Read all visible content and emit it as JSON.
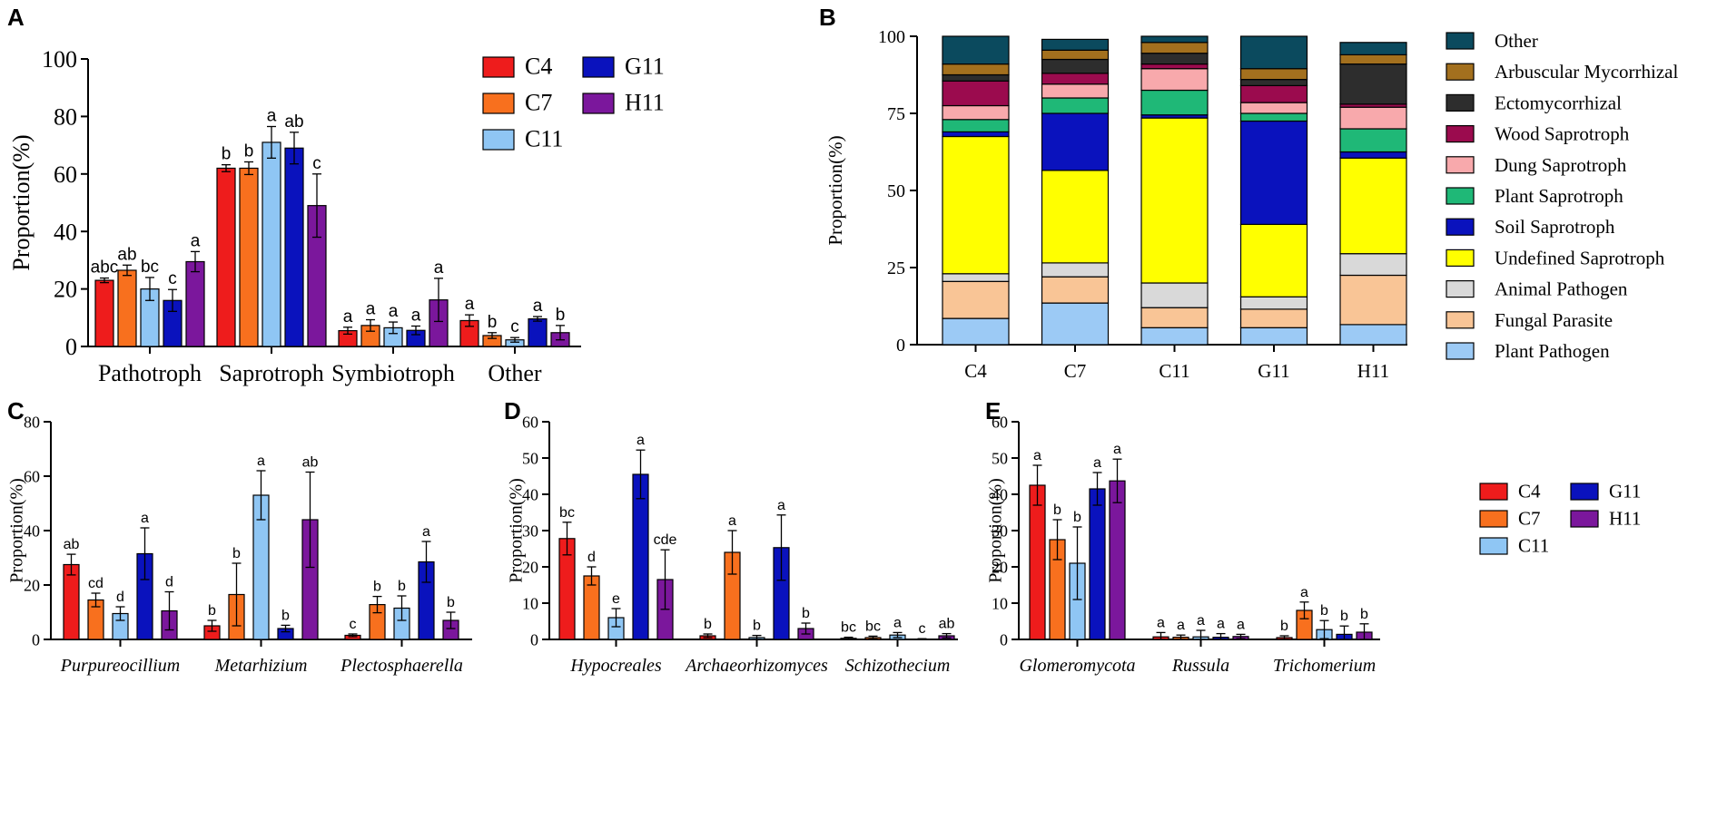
{
  "colors": {
    "C4": "#ee1c1c",
    "C7": "#f8701e",
    "C11": "#8fc6f4",
    "G11": "#0a12bd",
    "H11": "#7b179c",
    "axis": "#000000"
  },
  "chart_data": [
    {
      "id": "A",
      "panel_label": "A",
      "type": "bar",
      "ylabel": "Proportion(%)",
      "ylim": [
        0,
        100
      ],
      "yticks": [
        "0",
        "20",
        "40",
        "60",
        "80",
        "100"
      ],
      "categories": [
        "Pathotroph",
        "Saprotroph",
        "Symbiotroph",
        "Other"
      ],
      "italic_categories": false,
      "legend_title_order": [
        "C4",
        "C7",
        "C11",
        "G11",
        "H11"
      ],
      "series": [
        {
          "name": "C4",
          "values": [
            23,
            62,
            5.5,
            9
          ],
          "errors": [
            0.8,
            1.2,
            1.2,
            2
          ],
          "letters": [
            "abc",
            "b",
            "a",
            "a"
          ]
        },
        {
          "name": "C7",
          "values": [
            26.5,
            62,
            7.3,
            3.8
          ],
          "errors": [
            1.8,
            2.2,
            2,
            1
          ],
          "letters": [
            "ab",
            "b",
            "a",
            "b"
          ]
        },
        {
          "name": "C11",
          "values": [
            20,
            71,
            6.5,
            2.3
          ],
          "errors": [
            4,
            5.5,
            2,
            0.8
          ],
          "letters": [
            "bc",
            "a",
            "a",
            "c"
          ]
        },
        {
          "name": "G11",
          "values": [
            16,
            69,
            5.6,
            9.6
          ],
          "errors": [
            3.8,
            5.5,
            1.5,
            0.8
          ],
          "letters": [
            "c",
            "ab",
            "a",
            "a"
          ]
        },
        {
          "name": "H11",
          "values": [
            29.5,
            49,
            16.2,
            4.8
          ],
          "errors": [
            3.5,
            11,
            7.5,
            2.5
          ],
          "letters": [
            "a",
            "c",
            "a",
            "b"
          ]
        }
      ]
    },
    {
      "id": "B",
      "panel_label": "B",
      "type": "stacked-bar",
      "ylabel": "Proportion(%)",
      "ylim": [
        0,
        100
      ],
      "yticks": [
        "0",
        "25",
        "50",
        "75",
        "100"
      ],
      "categories": [
        "C4",
        "C7",
        "C11",
        "G11",
        "H11"
      ],
      "series": [
        {
          "name": "Plant Pathogen",
          "color": "#9ccaf5",
          "values": [
            8.5,
            13.5,
            5.5,
            5.5,
            6.5
          ]
        },
        {
          "name": "Fungal Parasite",
          "color": "#f9c596",
          "values": [
            12,
            8.5,
            6.5,
            6,
            16
          ]
        },
        {
          "name": "Animal Pathogen",
          "color": "#d9d9d9",
          "values": [
            2.5,
            4.5,
            8,
            4,
            7
          ]
        },
        {
          "name": "Undefined Saprotroph",
          "color": "#ffff00",
          "values": [
            44.5,
            30,
            53.5,
            23.5,
            31
          ]
        },
        {
          "name": "Soil Saprotroph",
          "color": "#0a12bd",
          "values": [
            1.5,
            18.5,
            1,
            33.5,
            2
          ]
        },
        {
          "name": "Plant Saprotroph",
          "color": "#1fb877",
          "values": [
            4,
            5,
            8,
            2.5,
            7.5
          ]
        },
        {
          "name": "Dung Saprotroph",
          "color": "#f8a9ac",
          "values": [
            4.5,
            4.5,
            7,
            3.5,
            7
          ]
        },
        {
          "name": "Wood Saprotroph",
          "color": "#9b0b4e",
          "values": [
            8,
            3.5,
            1.5,
            5.5,
            1
          ]
        },
        {
          "name": "Ectomycorrhizal",
          "color": "#2d2d2d",
          "values": [
            2,
            4.5,
            3.5,
            2,
            13
          ]
        },
        {
          "name": "Arbuscular Mycorrhizal",
          "color": "#a3701e",
          "values": [
            3.5,
            3,
            3.5,
            3.5,
            3
          ]
        },
        {
          "name": "Other",
          "color": "#0b4a5e",
          "values": [
            9,
            3.5,
            2,
            10.5,
            4
          ]
        }
      ],
      "legend_order": [
        "Other",
        "Arbuscular Mycorrhizal",
        "Ectomycorrhizal",
        "Wood Saprotroph",
        "Dung Saprotroph",
        "Plant Saprotroph",
        "Soil Saprotroph",
        "Undefined Saprotroph",
        "Animal Pathogen",
        "Fungal Parasite",
        "Plant Pathogen"
      ]
    },
    {
      "id": "C",
      "panel_label": "C",
      "type": "bar",
      "ylabel": "Proportion(%)",
      "ylim": [
        0,
        80
      ],
      "yticks": [
        "0",
        "20",
        "40",
        "60",
        "80"
      ],
      "categories": [
        "Purpureocillium",
        "Metarhizium",
        "Plectosphaerella"
      ],
      "italic_categories": true,
      "series": [
        {
          "name": "C4",
          "values": [
            27.5,
            5,
            1.5
          ],
          "errors": [
            3.8,
            2,
            0.5
          ],
          "letters": [
            "ab",
            "b",
            "c"
          ]
        },
        {
          "name": "C7",
          "values": [
            14.5,
            16.5,
            12.8
          ],
          "errors": [
            2.5,
            11.5,
            3
          ],
          "letters": [
            "cd",
            "b",
            "b"
          ]
        },
        {
          "name": "C11",
          "values": [
            9.5,
            53,
            11.5
          ],
          "errors": [
            2.5,
            9,
            4.5
          ],
          "letters": [
            "d",
            "a",
            "b"
          ]
        },
        {
          "name": "G11",
          "values": [
            31.5,
            4,
            28.5
          ],
          "errors": [
            9.5,
            1.2,
            7.5
          ],
          "letters": [
            "a",
            "b",
            "a"
          ]
        },
        {
          "name": "H11",
          "values": [
            10.5,
            44,
            7
          ],
          "errors": [
            7,
            17.5,
            3
          ],
          "letters": [
            "d",
            "ab",
            "b"
          ]
        }
      ]
    },
    {
      "id": "D",
      "panel_label": "D",
      "type": "bar",
      "ylabel": "Proportion(%)",
      "ylim": [
        0,
        60
      ],
      "yticks": [
        "0",
        "10",
        "20",
        "30",
        "40",
        "50",
        "60"
      ],
      "categories": [
        "Hypocreales",
        "Archaeorhizomyces",
        "Schizothecium"
      ],
      "italic_categories": true,
      "series": [
        {
          "name": "C4",
          "values": [
            27.8,
            1,
            0.3
          ],
          "errors": [
            4.5,
            0.5,
            0.3
          ],
          "letters": [
            "bc",
            "b",
            "bc"
          ]
        },
        {
          "name": "C7",
          "values": [
            17.5,
            24,
            0.5
          ],
          "errors": [
            2.5,
            6,
            0.4
          ],
          "letters": [
            "d",
            "a",
            "bc"
          ]
        },
        {
          "name": "C11",
          "values": [
            6,
            0.5,
            1.2
          ],
          "errors": [
            2.5,
            0.6,
            0.7
          ],
          "letters": [
            "e",
            "b",
            "a"
          ]
        },
        {
          "name": "G11",
          "values": [
            45.5,
            25.3,
            0.1
          ],
          "errors": [
            6.7,
            9,
            0.1
          ],
          "letters": [
            "a",
            "a",
            "c"
          ]
        },
        {
          "name": "H11",
          "values": [
            16.5,
            3,
            1
          ],
          "errors": [
            8.2,
            1.5,
            0.6
          ],
          "letters": [
            "cde",
            "b",
            "ab"
          ]
        }
      ]
    },
    {
      "id": "E",
      "panel_label": "E",
      "type": "bar",
      "ylabel": "Proportion(%)",
      "ylim": [
        0,
        60
      ],
      "yticks": [
        "0",
        "10",
        "20",
        "30",
        "40",
        "50",
        "60"
      ],
      "categories": [
        "Glomeromycota",
        "Russula",
        "Trichomerium"
      ],
      "italic_categories": true,
      "legend_title_order": [
        "C4",
        "C7",
        "C11",
        "G11",
        "H11"
      ],
      "series": [
        {
          "name": "C4",
          "values": [
            42.5,
            0.7,
            0.5
          ],
          "errors": [
            5.5,
            1.2,
            0.5
          ],
          "letters": [
            "a",
            "a",
            "b"
          ]
        },
        {
          "name": "C7",
          "values": [
            27.5,
            0.6,
            8
          ],
          "errors": [
            5.5,
            0.6,
            2.3
          ],
          "letters": [
            "b",
            "a",
            "a"
          ]
        },
        {
          "name": "C11",
          "values": [
            21,
            0.7,
            2.7
          ],
          "errors": [
            10,
            1.8,
            2.5
          ],
          "letters": [
            "b",
            "a",
            "b"
          ]
        },
        {
          "name": "G11",
          "values": [
            41.5,
            0.6,
            1.4
          ],
          "errors": [
            4.5,
            1,
            2.3
          ],
          "letters": [
            "a",
            "a",
            "b"
          ]
        },
        {
          "name": "H11",
          "values": [
            43.7,
            0.8,
            2
          ],
          "errors": [
            6,
            0.6,
            2.3
          ],
          "letters": [
            "a",
            "a",
            "b"
          ]
        }
      ]
    }
  ]
}
